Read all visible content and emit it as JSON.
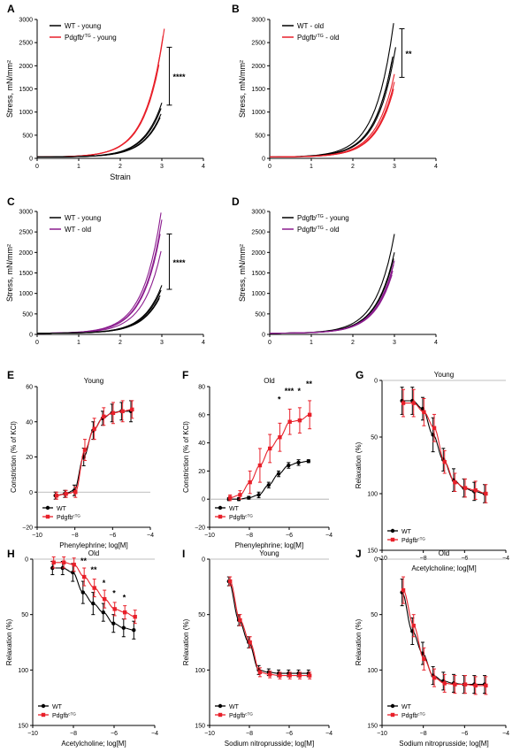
{
  "chart_data": [
    {
      "id": "A",
      "panel_letter": "A",
      "type": "line",
      "xlabel": "Strain",
      "ylabel": "Stress, mN/mm²",
      "xlim": [
        0,
        4
      ],
      "ylim": [
        0,
        3000
      ],
      "xticks": [
        "0",
        "1",
        "2",
        "3",
        "4"
      ],
      "yticks": [
        "0",
        "500",
        "1000",
        "1500",
        "2000",
        "2500",
        "3000"
      ],
      "legend": {
        "position": "top-left",
        "entries": [
          {
            "text": "WT - young",
            "base": "WT - young",
            "sup": "",
            "tail": "",
            "color": "#000000"
          },
          {
            "text": "Pdgfbrtg - young",
            "base": "Pdgfb",
            "sup": "rTG",
            "tail": " - young",
            "color": "#e8202a"
          }
        ]
      },
      "significance": {
        "label": "****",
        "from": 1150,
        "to": 2400
      },
      "series": [
        {
          "color": "#e8202a",
          "curves": [
            {
              "x_end": 3.06,
              "y_end": 2800
            },
            {
              "x_end": 3.03,
              "y_end": 2650
            },
            {
              "x_end": 2.96,
              "y_end": 2250
            },
            {
              "x_end": 2.93,
              "y_end": 2020
            }
          ]
        },
        {
          "color": "#000000",
          "curves": [
            {
              "x_end": 3.0,
              "y_end": 1200
            },
            {
              "x_end": 2.98,
              "y_end": 1080
            },
            {
              "x_end": 2.98,
              "y_end": 960
            },
            {
              "x_end": 2.96,
              "y_end": 880
            }
          ]
        }
      ]
    },
    {
      "id": "B",
      "panel_letter": "B",
      "type": "line",
      "xlabel": "",
      "ylabel": "Stress, mN/mm²",
      "xlim": [
        0,
        4
      ],
      "ylim": [
        0,
        3000
      ],
      "xticks": [
        "0",
        "1",
        "2",
        "3",
        "4"
      ],
      "yticks": [
        "0",
        "500",
        "1000",
        "1500",
        "2000",
        "2500",
        "3000"
      ],
      "legend": {
        "position": "top-left",
        "entries": [
          {
            "text": "WT - old",
            "base": "WT - old",
            "sup": "",
            "tail": "",
            "color": "#000000"
          },
          {
            "text": "Pdgfbrtg - old",
            "base": "Pdgfb",
            "sup": "rTG",
            "tail": " - old",
            "color": "#e8202a"
          }
        ]
      },
      "significance": {
        "label": "**",
        "from": 1750,
        "to": 2800
      },
      "series": [
        {
          "color": "#000000",
          "curves": [
            {
              "x_end": 2.98,
              "y_end": 2920
            },
            {
              "x_end": 3.03,
              "y_end": 2400
            },
            {
              "x_end": 2.96,
              "y_end": 2200
            },
            {
              "x_end": 2.94,
              "y_end": 2100
            }
          ]
        },
        {
          "color": "#e8202a",
          "curves": [
            {
              "x_end": 3.0,
              "y_end": 1820
            },
            {
              "x_end": 3.0,
              "y_end": 1650
            },
            {
              "x_end": 2.98,
              "y_end": 1500
            },
            {
              "x_end": 2.96,
              "y_end": 1420
            }
          ]
        }
      ]
    },
    {
      "id": "C",
      "panel_letter": "C",
      "type": "line",
      "xlabel": "",
      "ylabel": "Stress, mN/mm²",
      "xlim": [
        0,
        4
      ],
      "ylim": [
        0,
        3000
      ],
      "xticks": [
        "0",
        "1",
        "2",
        "3",
        "4"
      ],
      "yticks": [
        "0",
        "500",
        "1000",
        "1500",
        "2000",
        "2500",
        "3000"
      ],
      "legend": {
        "position": "top-left",
        "entries": [
          {
            "text": "WT - young",
            "base": "WT - young",
            "sup": "",
            "tail": "",
            "color": "#000000"
          },
          {
            "text": "WT - old",
            "base": "WT - old",
            "sup": "",
            "tail": "",
            "color": "#8b1c8e"
          }
        ]
      },
      "significance": {
        "label": "****",
        "from": 1100,
        "to": 2450
      },
      "series": [
        {
          "color": "#8b1c8e",
          "curves": [
            {
              "x_end": 2.98,
              "y_end": 2970
            },
            {
              "x_end": 3.0,
              "y_end": 2800
            },
            {
              "x_end": 2.96,
              "y_end": 2450
            },
            {
              "x_end": 2.98,
              "y_end": 2030
            }
          ]
        },
        {
          "color": "#000000",
          "curves": [
            {
              "x_end": 3.0,
              "y_end": 1200
            },
            {
              "x_end": 2.98,
              "y_end": 1080
            },
            {
              "x_end": 2.96,
              "y_end": 950
            },
            {
              "x_end": 2.94,
              "y_end": 880
            }
          ]
        }
      ]
    },
    {
      "id": "D",
      "panel_letter": "D",
      "type": "line",
      "xlabel": "",
      "ylabel": "Stress, mN/mm²",
      "xlim": [
        0,
        4
      ],
      "ylim": [
        0,
        3000
      ],
      "xticks": [
        "0",
        "1",
        "2",
        "3",
        "4"
      ],
      "yticks": [
        "0",
        "500",
        "1000",
        "1500",
        "2000",
        "2500",
        "3000"
      ],
      "legend": {
        "position": "top-left",
        "entries": [
          {
            "text": "Pdgfbrtg - young",
            "base": "Pdgfb",
            "sup": "rTG",
            "tail": " - young",
            "color": "#000000"
          },
          {
            "text": "Pdgfbrtg - old",
            "base": "Pdgfb",
            "sup": "rTG",
            "tail": " - old",
            "color": "#8b1c8e"
          }
        ]
      },
      "significance": null,
      "series": [
        {
          "color": "#000000",
          "curves": [
            {
              "x_end": 3.0,
              "y_end": 2450
            },
            {
              "x_end": 3.0,
              "y_end": 2000
            },
            {
              "x_end": 2.98,
              "y_end": 1850
            }
          ]
        },
        {
          "color": "#8b1c8e",
          "curves": [
            {
              "x_end": 3.0,
              "y_end": 1800
            },
            {
              "x_end": 2.98,
              "y_end": 1700
            },
            {
              "x_end": 2.96,
              "y_end": 1550
            },
            {
              "x_end": 2.94,
              "y_end": 1450
            }
          ]
        }
      ]
    },
    {
      "id": "E",
      "panel_letter": "E",
      "type": "scatter",
      "title": "Young",
      "xlabel": "Phenylephrine; log[M]",
      "ylabel": "Constriction (% of KCl)",
      "xlim": [
        -10,
        -4
      ],
      "ylim": [
        -20,
        60
      ],
      "inverted": false,
      "xticks": [
        "-10",
        "-8",
        "-6",
        "-4"
      ],
      "yticks": [
        "-20",
        "0",
        "20",
        "40",
        "60"
      ],
      "legend": {
        "position": "bottom-left",
        "entries": [
          {
            "text": "WT",
            "base": "WT",
            "sup": "",
            "color": "#000000"
          },
          {
            "text": "Pdgfbctg",
            "base": "Pdgfb",
            "sup": "cTG",
            "color": "#e8202a"
          }
        ]
      },
      "x": [
        -9.0,
        -8.5,
        -8.0,
        -7.5,
        -7.0,
        -6.5,
        -6.0,
        -5.5,
        -5.0
      ],
      "series": [
        {
          "name": "WT",
          "color": "#000000",
          "values": [
            -2,
            -1,
            1,
            20,
            35,
            42,
            45,
            46,
            46
          ],
          "err": [
            2,
            2,
            3,
            5,
            5,
            4,
            5,
            5,
            6
          ]
        },
        {
          "name": "Pdgfbctg",
          "color": "#e8202a",
          "values": [
            -2,
            -1,
            0,
            24,
            36,
            43,
            45,
            46,
            47
          ],
          "err": [
            2,
            2,
            3,
            6,
            6,
            5,
            6,
            6,
            5
          ]
        }
      ],
      "annotations": []
    },
    {
      "id": "F",
      "panel_letter": "F",
      "type": "scatter",
      "title": "Old",
      "xlabel": "Phenylephrine; log[M]",
      "ylabel": "Constriction (% of KCl)",
      "xlim": [
        -10,
        -4
      ],
      "ylim": [
        -20,
        80
      ],
      "inverted": false,
      "xticks": [
        "-10",
        "-8",
        "-6",
        "-4"
      ],
      "yticks": [
        "-20",
        "0",
        "20",
        "40",
        "60",
        "80"
      ],
      "legend": {
        "position": "bottom-left",
        "entries": [
          {
            "text": "WT",
            "base": "WT",
            "sup": "",
            "color": "#000000"
          },
          {
            "text": "Pdgfbctg",
            "base": "Pdgfb",
            "sup": "cTG",
            "color": "#e8202a"
          }
        ]
      },
      "x": [
        -9.0,
        -8.5,
        -8.0,
        -7.5,
        -7.0,
        -6.5,
        -6.0,
        -5.5,
        -5.0
      ],
      "series": [
        {
          "name": "WT",
          "color": "#000000",
          "values": [
            0,
            0,
            1,
            3,
            10,
            18,
            24,
            26,
            27
          ],
          "err": [
            1,
            1,
            1,
            2,
            2,
            2,
            2,
            2,
            1
          ]
        },
        {
          "name": "Pdgfbctg",
          "color": "#e8202a",
          "values": [
            1,
            3,
            12,
            24,
            36,
            44,
            55,
            56,
            60
          ],
          "err": [
            2,
            3,
            8,
            12,
            10,
            10,
            9,
            9,
            10
          ]
        }
      ],
      "annotations": [
        {
          "x": -6.5,
          "label": "*",
          "y": 69
        },
        {
          "x": -6.0,
          "label": "***",
          "y": 75
        },
        {
          "x": -5.5,
          "label": "*",
          "y": 75
        },
        {
          "x": -5.0,
          "label": "**",
          "y": 80
        }
      ]
    },
    {
      "id": "G",
      "panel_letter": "G",
      "type": "scatter",
      "title": "Young",
      "xlabel": "Acetylcholine; log[M]",
      "ylabel": "Relaxation (%)",
      "xlim": [
        -10,
        -4
      ],
      "ylim": [
        0,
        150
      ],
      "inverted": true,
      "xticks": [
        "-10",
        "-8",
        "-6",
        "-4"
      ],
      "yticks": [
        "0",
        "50",
        "100",
        "150"
      ],
      "legend": {
        "position": "bottom-left",
        "entries": [
          {
            "text": "WT",
            "base": "WT",
            "sup": "",
            "color": "#000000"
          },
          {
            "text": "Pdgfbctg",
            "base": "Pdgfb",
            "sup": "cTG",
            "color": "#e8202a"
          }
        ]
      },
      "x": [
        -9.0,
        -8.5,
        -8.0,
        -7.5,
        -7.0,
        -6.5,
        -6.0,
        -5.5,
        -5.0
      ],
      "series": [
        {
          "name": "WT",
          "color": "#000000",
          "values": [
            18,
            18,
            25,
            48,
            70,
            88,
            95,
            98,
            100
          ],
          "err": [
            12,
            12,
            10,
            15,
            10,
            10,
            8,
            8,
            8
          ]
        },
        {
          "name": "Pdgfbctg",
          "color": "#e8202a",
          "values": [
            20,
            20,
            28,
            42,
            72,
            90,
            95,
            97,
            100
          ],
          "err": [
            12,
            12,
            12,
            12,
            10,
            8,
            8,
            8,
            8
          ]
        }
      ],
      "annotations": []
    },
    {
      "id": "H",
      "panel_letter": "H",
      "type": "scatter",
      "title": "Old",
      "xlabel": "Acetylcholine; log[M]",
      "ylabel": "Relaxation (%)",
      "xlim": [
        -10,
        -4
      ],
      "ylim": [
        0,
        150
      ],
      "inverted": true,
      "xticks": [
        "-10",
        "-8",
        "-6",
        "-4"
      ],
      "yticks": [
        "0",
        "50",
        "100",
        "150"
      ],
      "legend": {
        "position": "bottom-left",
        "entries": [
          {
            "text": "WT",
            "base": "WT",
            "sup": "",
            "color": "#000000"
          },
          {
            "text": "Pdgfbctg",
            "base": "Pdgfb",
            "sup": "cTG",
            "color": "#e8202a"
          }
        ]
      },
      "x": [
        -9.0,
        -8.5,
        -8.0,
        -7.5,
        -7.0,
        -6.5,
        -6.0,
        -5.5,
        -5.0
      ],
      "series": [
        {
          "name": "WT",
          "color": "#000000",
          "values": [
            8,
            8,
            12,
            30,
            40,
            48,
            58,
            62,
            64
          ],
          "err": [
            6,
            6,
            8,
            10,
            10,
            8,
            8,
            8,
            8
          ]
        },
        {
          "name": "Pdgfbctg",
          "color": "#e8202a",
          "values": [
            3,
            3,
            5,
            16,
            26,
            36,
            45,
            48,
            52
          ],
          "err": [
            5,
            5,
            6,
            8,
            8,
            8,
            6,
            6,
            6
          ]
        }
      ],
      "annotations": [
        {
          "x": -7.5,
          "label": "**",
          "y": 4
        },
        {
          "x": -7.0,
          "label": "**",
          "y": 12
        },
        {
          "x": -6.5,
          "label": "*",
          "y": 24
        },
        {
          "x": -6.0,
          "label": "*",
          "y": 33
        },
        {
          "x": -5.5,
          "label": "*",
          "y": 37
        }
      ]
    },
    {
      "id": "I",
      "panel_letter": "I",
      "type": "scatter",
      "title": "Young",
      "xlabel": "Sodium nitroprusside; log[M]",
      "ylabel": "Relaxation (%)",
      "xlim": [
        -10,
        -4
      ],
      "ylim": [
        0,
        150
      ],
      "inverted": true,
      "xticks": [
        "-10",
        "-8",
        "-6",
        "-4"
      ],
      "yticks": [
        "0",
        "50",
        "100",
        "150"
      ],
      "legend": {
        "position": "bottom-left",
        "entries": [
          {
            "text": "WT",
            "base": "WT",
            "sup": "",
            "color": "#000000"
          },
          {
            "text": "Pdgfbctg",
            "base": "Pdgfb",
            "sup": "cTG",
            "color": "#e8202a"
          }
        ]
      },
      "x": [
        -9.0,
        -8.5,
        -8.0,
        -7.5,
        -7.0,
        -6.5,
        -6.0,
        -5.5,
        -5.0
      ],
      "series": [
        {
          "name": "WT",
          "color": "#000000",
          "values": [
            20,
            55,
            75,
            100,
            102,
            103,
            103,
            103,
            103
          ],
          "err": [
            4,
            5,
            5,
            4,
            3,
            3,
            3,
            3,
            3
          ]
        },
        {
          "name": "Pdgfbctg",
          "color": "#e8202a",
          "values": [
            20,
            55,
            75,
            102,
            104,
            105,
            105,
            105,
            105
          ],
          "err": [
            4,
            5,
            5,
            4,
            3,
            3,
            3,
            3,
            3
          ]
        }
      ],
      "annotations": []
    },
    {
      "id": "J",
      "panel_letter": "J",
      "type": "scatter",
      "title": "Old",
      "xlabel": "Sodium nitroprusside; log[M]",
      "ylabel": "Relaxation (%)",
      "xlim": [
        -10,
        -4
      ],
      "ylim": [
        0,
        150
      ],
      "inverted": true,
      "xticks": [
        "-10",
        "-8",
        "-6",
        "-4"
      ],
      "yticks": [
        "0",
        "50",
        "100",
        "150"
      ],
      "legend": {
        "position": "bottom-left",
        "entries": [
          {
            "text": "WT",
            "base": "WT",
            "sup": "",
            "color": "#000000"
          },
          {
            "text": "Pdgfbctg",
            "base": "Pdgfb",
            "sup": "cTG",
            "color": "#e8202a"
          }
        ]
      },
      "x": [
        -9.0,
        -8.5,
        -8.0,
        -7.5,
        -7.0,
        -6.5,
        -6.0,
        -5.5,
        -5.0
      ],
      "series": [
        {
          "name": "WT",
          "color": "#000000",
          "values": [
            30,
            65,
            85,
            105,
            110,
            112,
            113,
            113,
            113
          ],
          "err": [
            12,
            12,
            10,
            8,
            8,
            8,
            8,
            8,
            8
          ]
        },
        {
          "name": "Pdgfbctg",
          "color": "#e8202a",
          "values": [
            28,
            60,
            90,
            107,
            112,
            113,
            113,
            114,
            114
          ],
          "err": [
            12,
            10,
            10,
            8,
            8,
            8,
            8,
            8,
            8
          ]
        }
      ],
      "annotations": []
    }
  ]
}
